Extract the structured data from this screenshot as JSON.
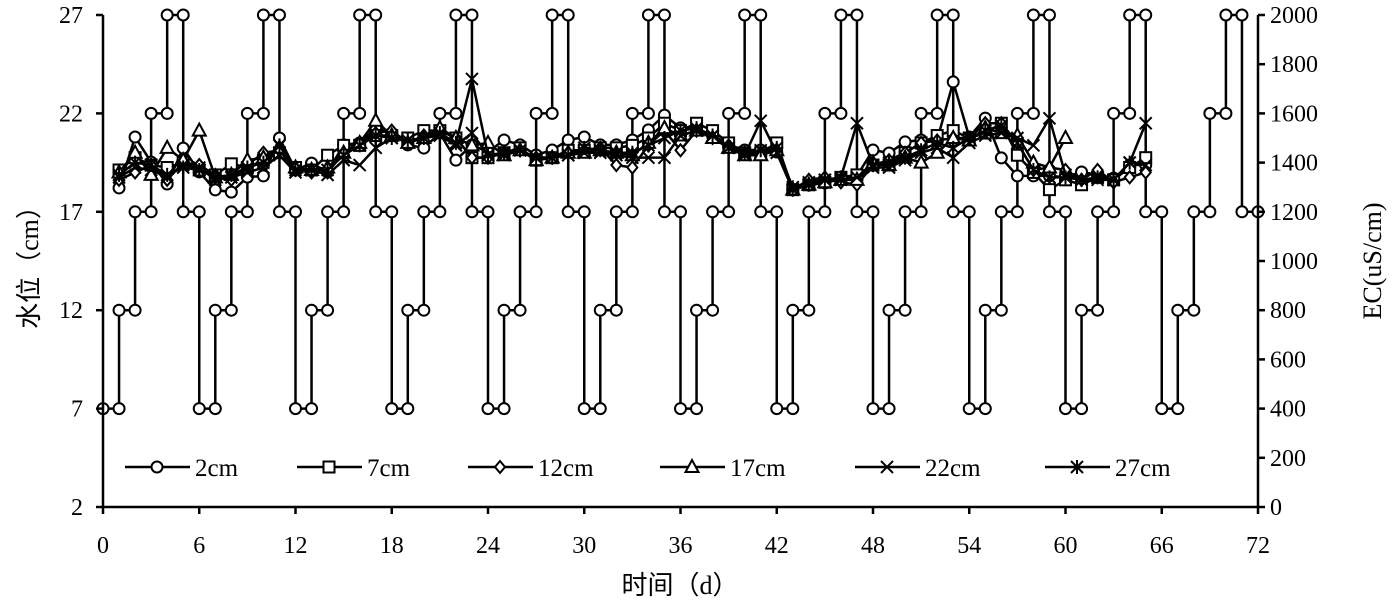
{
  "chart_data": {
    "type": "line",
    "title": "",
    "xlabel": "时间（d）",
    "ylabel": "水位（cm）",
    "y2label": "EC(uS/cm)",
    "xlim": [
      0,
      72
    ],
    "ylim": [
      2,
      27
    ],
    "y2lim": [
      0,
      2000
    ],
    "xticks": [
      0,
      6,
      12,
      18,
      24,
      30,
      36,
      42,
      48,
      54,
      60,
      66,
      72
    ],
    "yticks": [
      2,
      7,
      12,
      17,
      22,
      27
    ],
    "y2ticks": [
      0,
      200,
      400,
      600,
      800,
      1000,
      1200,
      1400,
      1600,
      1800,
      2000
    ],
    "grid": false,
    "legend_position": "bottom-inside",
    "water_level": {
      "axis": "left",
      "marker": "circle",
      "points": [
        [
          0,
          7
        ],
        [
          1,
          7
        ],
        [
          1,
          12
        ],
        [
          2,
          12
        ],
        [
          2,
          17
        ],
        [
          3,
          17
        ],
        [
          3,
          22
        ],
        [
          4,
          22
        ],
        [
          4,
          27
        ],
        [
          5,
          27
        ],
        [
          5,
          17
        ],
        [
          6,
          17
        ],
        [
          6,
          7
        ],
        [
          7,
          7
        ],
        [
          7,
          12
        ],
        [
          8,
          12
        ],
        [
          8,
          17
        ],
        [
          9,
          17
        ],
        [
          9,
          22
        ],
        [
          10,
          22
        ],
        [
          10,
          27
        ],
        [
          11,
          27
        ],
        [
          11,
          17
        ],
        [
          12,
          17
        ],
        [
          12,
          7
        ],
        [
          13,
          7
        ],
        [
          13,
          12
        ],
        [
          14,
          12
        ],
        [
          14,
          17
        ],
        [
          15,
          17
        ],
        [
          15,
          22
        ],
        [
          16,
          22
        ],
        [
          16,
          27
        ],
        [
          17,
          27
        ],
        [
          17,
          17
        ],
        [
          18,
          17
        ],
        [
          18,
          7
        ],
        [
          19,
          7
        ],
        [
          19,
          12
        ],
        [
          20,
          12
        ],
        [
          20,
          17
        ],
        [
          21,
          17
        ],
        [
          21,
          22
        ],
        [
          22,
          22
        ],
        [
          22,
          27
        ],
        [
          23,
          27
        ],
        [
          23,
          17
        ],
        [
          24,
          17
        ],
        [
          24,
          7
        ],
        [
          25,
          7
        ],
        [
          25,
          12
        ],
        [
          26,
          12
        ],
        [
          26,
          17
        ],
        [
          27,
          17
        ],
        [
          27,
          22
        ],
        [
          28,
          22
        ],
        [
          28,
          27
        ],
        [
          29,
          27
        ],
        [
          29,
          17
        ],
        [
          30,
          17
        ],
        [
          30,
          7
        ],
        [
          31,
          7
        ],
        [
          31,
          12
        ],
        [
          32,
          12
        ],
        [
          32,
          17
        ],
        [
          33,
          17
        ],
        [
          33,
          22
        ],
        [
          34,
          22
        ],
        [
          34,
          27
        ],
        [
          35,
          27
        ],
        [
          35,
          17
        ],
        [
          36,
          17
        ],
        [
          36,
          7
        ],
        [
          37,
          7
        ],
        [
          37,
          12
        ],
        [
          38,
          12
        ],
        [
          38,
          17
        ],
        [
          39,
          17
        ],
        [
          39,
          22
        ],
        [
          40,
          22
        ],
        [
          40,
          27
        ],
        [
          41,
          27
        ],
        [
          41,
          17
        ],
        [
          42,
          17
        ],
        [
          42,
          7
        ],
        [
          43,
          7
        ],
        [
          43,
          12
        ],
        [
          44,
          12
        ],
        [
          44,
          17
        ],
        [
          45,
          17
        ],
        [
          45,
          22
        ],
        [
          46,
          22
        ],
        [
          46,
          27
        ],
        [
          47,
          27
        ],
        [
          47,
          17
        ],
        [
          48,
          17
        ],
        [
          48,
          7
        ],
        [
          49,
          7
        ],
        [
          49,
          12
        ],
        [
          50,
          12
        ],
        [
          50,
          17
        ],
        [
          51,
          17
        ],
        [
          51,
          22
        ],
        [
          52,
          22
        ],
        [
          52,
          27
        ],
        [
          53,
          27
        ],
        [
          53,
          17
        ],
        [
          54,
          17
        ],
        [
          54,
          7
        ],
        [
          55,
          7
        ],
        [
          55,
          12
        ],
        [
          56,
          12
        ],
        [
          56,
          17
        ],
        [
          57,
          17
        ],
        [
          57,
          22
        ],
        [
          58,
          22
        ],
        [
          58,
          27
        ],
        [
          59,
          27
        ],
        [
          59,
          17
        ],
        [
          60,
          17
        ],
        [
          60,
          7
        ],
        [
          61,
          7
        ],
        [
          61,
          12
        ],
        [
          62,
          12
        ],
        [
          62,
          17
        ],
        [
          63,
          17
        ],
        [
          63,
          22
        ],
        [
          64,
          22
        ],
        [
          64,
          27
        ],
        [
          65,
          27
        ],
        [
          65,
          17
        ],
        [
          66,
          17
        ],
        [
          66,
          7
        ],
        [
          67,
          7
        ],
        [
          67,
          12
        ],
        [
          68,
          12
        ],
        [
          68,
          17
        ],
        [
          69,
          17
        ],
        [
          69,
          22
        ],
        [
          70,
          22
        ],
        [
          70,
          27
        ],
        [
          71,
          27
        ],
        [
          71,
          17
        ],
        [
          72,
          17
        ]
      ]
    },
    "ec_x_start": 1,
    "series": [
      {
        "name": "2cm",
        "marker": "circle",
        "axis": "right",
        "values": [
          1297,
          1504,
          1402,
          1313,
          1459,
          1362,
          1289,
          1280,
          1341,
          1346,
          1500,
          1370,
          1398,
          1362,
          1472,
          1480,
          1541,
          1520,
          1472,
          1459,
          1520,
          1410,
          1472,
          1443,
          1492,
          1472,
          1431,
          1451,
          1492,
          1504,
          1472,
          1472,
          1492,
          1533,
          1593,
          1541,
          1533,
          1512,
          1472,
          1451,
          1451,
          1443,
          1289,
          1309,
          1317,
          1337,
          1346,
          1451,
          1439,
          1484,
          1492,
          1492,
          1728,
          1504,
          1581,
          1419,
          1346,
          1346,
          1346,
          1341,
          1362,
          1350,
          1337,
          1390,
          1390
        ]
      },
      {
        "name": "7cm",
        "marker": "square",
        "axis": "right",
        "values": [
          1370,
          1420,
          1390,
          1380,
          1400,
          1370,
          1350,
          1395,
          1380,
          1410,
          1440,
          1380,
          1370,
          1430,
          1470,
          1470,
          1510,
          1510,
          1500,
          1530,
          1530,
          1500,
          1420,
          1420,
          1440,
          1460,
          1410,
          1420,
          1450,
          1450,
          1460,
          1460,
          1470,
          1500,
          1560,
          1530,
          1560,
          1530,
          1480,
          1440,
          1440,
          1480,
          1290,
          1310,
          1320,
          1340,
          1350,
          1390,
          1390,
          1440,
          1480,
          1510,
          1530,
          1500,
          1520,
          1560,
          1430,
          1360,
          1290,
          1330,
          1310,
          1340,
          1330,
          1380,
          1420
        ]
      },
      {
        "name": "12cm",
        "marker": "diamond",
        "axis": "right",
        "values": [
          1330,
          1360,
          1390,
          1330,
          1400,
          1390,
          1350,
          1330,
          1390,
          1440,
          1450,
          1370,
          1360,
          1360,
          1440,
          1480,
          1520,
          1530,
          1480,
          1510,
          1530,
          1500,
          1420,
          1420,
          1440,
          1450,
          1420,
          1420,
          1440,
          1450,
          1460,
          1390,
          1380,
          1470,
          1530,
          1450,
          1530,
          1500,
          1470,
          1440,
          1440,
          1450,
          1290,
          1330,
          1340,
          1320,
          1310,
          1390,
          1410,
          1440,
          1480,
          1490,
          1500,
          1500,
          1560,
          1560,
          1480,
          1370,
          1380,
          1370,
          1330,
          1370,
          1320,
          1340,
          1360
        ]
      },
      {
        "name": "17cm",
        "marker": "triangle",
        "axis": "right",
        "values": [
          1360,
          1440,
          1350,
          1460,
          1410,
          1530,
          1340,
          1350,
          1410,
          1420,
          1460,
          1380,
          1370,
          1380,
          1440,
          1480,
          1570,
          1510,
          1480,
          1500,
          1540,
          1500,
          1470,
          1480,
          1430,
          1450,
          1410,
          1420,
          1440,
          1440,
          1450,
          1440,
          1430,
          1480,
          1540,
          1510,
          1530,
          1500,
          1460,
          1430,
          1430,
          1450,
          1290,
          1310,
          1320,
          1330,
          1330,
          1400,
          1390,
          1420,
          1400,
          1440,
          1500,
          1490,
          1540,
          1520,
          1510,
          1400,
          1380,
          1500,
          null,
          null,
          null,
          null,
          null
        ]
      },
      {
        "name": "22cm",
        "marker": "x",
        "axis": "right",
        "values": [
          1340,
          1380,
          1370,
          1340,
          1390,
          1380,
          1330,
          1340,
          1360,
          1380,
          1430,
          1360,
          1370,
          1350,
          1410,
          1390,
          1460,
          1500,
          1490,
          1500,
          1510,
          1470,
          1520,
          1430,
          1430,
          1450,
          1420,
          1420,
          1430,
          1440,
          1440,
          1430,
          1420,
          1420,
          1420,
          1510,
          1530,
          1510,
          1460,
          1430,
          1570,
          1440,
          1290,
          1320,
          1330,
          1330,
          1340,
          1380,
          1380,
          1410,
          1440,
          1460,
          1420,
          1480,
          1510,
          1520,
          1500,
          1470,
          1580,
          1350,
          1330,
          1330,
          1330,
          1400,
          1390
        ]
      },
      {
        "name": "27cm",
        "marker": "asterisk",
        "axis": "right",
        "values": [
          1350,
          1400,
          1390,
          1350,
          1380,
          1370,
          1340,
          1350,
          1380,
          1400,
          1470,
          1370,
          1370,
          1370,
          1430,
          1470,
          1510,
          1500,
          1490,
          1500,
          1520,
          1480,
          1740,
          1430,
          1440,
          1450,
          1420,
          1420,
          1430,
          1460,
          1450,
          1440,
          1440,
          1470,
          1500,
          1530,
          1540,
          1510,
          1460,
          1440,
          1450,
          1460,
          1300,
          1310,
          1330,
          1340,
          1560,
          1390,
          1400,
          1420,
          1450,
          1480,
          1460,
          1500,
          1530,
          1550,
          1480,
          1370,
          1340,
          1340,
          1330,
          1340,
          1330,
          1400,
          1560
        ]
      }
    ]
  }
}
